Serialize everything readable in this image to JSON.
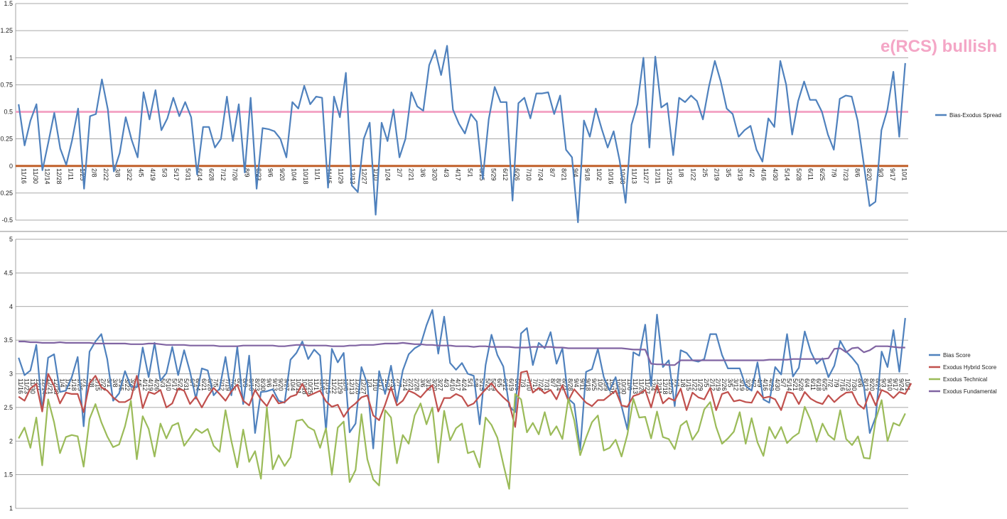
{
  "chart_data": [
    {
      "type": "line",
      "annotation": "e(RCS) bullish",
      "ylim": [
        -0.5,
        1.5
      ],
      "yticks": [
        "-0.5",
        "-0.25",
        "0",
        "0.25",
        "0.5",
        "0.75",
        "1",
        "1.25",
        "1.5"
      ],
      "grid": true,
      "legend_position": "right",
      "reference_lines": [
        {
          "value": 0.5,
          "color": "#f4a6c6"
        },
        {
          "value": 0,
          "color": "#c0602a"
        }
      ],
      "x_tick_labels": [
        "11/16",
        "11/30",
        "12/14",
        "12/28",
        "1/11",
        "1/25",
        "2/8",
        "2/22",
        "3/8",
        "3/22",
        "4/5",
        "4/19",
        "5/3",
        "5/17",
        "5/31",
        "6/14",
        "6/28",
        "7/12",
        "7/26",
        "8/9",
        "8/23",
        "9/6",
        "9/20",
        "10/4",
        "10/18",
        "11/1",
        "11/15",
        "11/29",
        "12/13",
        "12/27",
        "1/10",
        "1/24",
        "2/7",
        "2/21",
        "3/6",
        "3/20",
        "4/3",
        "4/17",
        "5/1",
        "5/15",
        "5/29",
        "6/12",
        "6/26",
        "7/10",
        "7/24",
        "8/7",
        "8/21",
        "9/4",
        "9/18",
        "10/2",
        "10/16",
        "10/30",
        "11/13",
        "11/27",
        "12/11",
        "12/25",
        "1/8",
        "1/22",
        "2/5",
        "2/19",
        "3/5",
        "3/19",
        "4/2",
        "4/16",
        "4/30",
        "5/14",
        "5/28",
        "6/11",
        "6/25",
        "7/9",
        "7/23",
        "8/6",
        "8/20",
        "9/3",
        "9/17",
        "10/1"
      ],
      "series": [
        {
          "name": "Bias-Exodus Spread",
          "color": "#4f81bd",
          "values": [
            0.57,
            0.19,
            0.42,
            0.57,
            -0.04,
            0.22,
            0.49,
            0.16,
            0.01,
            0.24,
            0.53,
            -0.21,
            0.46,
            0.48,
            0.8,
            0.52,
            -0.05,
            0.12,
            0.45,
            0.24,
            0.08,
            0.68,
            0.43,
            0.7,
            0.33,
            0.44,
            0.63,
            0.46,
            0.59,
            0.45,
            -0.08,
            0.36,
            0.36,
            0.17,
            0.25,
            0.64,
            0.23,
            0.57,
            -0.06,
            0.63,
            -0.21,
            0.35,
            0.34,
            0.32,
            0.25,
            0.08,
            0.59,
            0.53,
            0.74,
            0.57,
            0.64,
            0.63,
            -0.2,
            0.64,
            0.45,
            0.86,
            -0.18,
            -0.24,
            0.25,
            0.4,
            -0.45,
            0.4,
            0.23,
            0.52,
            0.08,
            0.25,
            0.68,
            0.55,
            0.51,
            0.93,
            1.07,
            0.84,
            1.11,
            0.52,
            0.39,
            0.3,
            0.48,
            0.41,
            -0.12,
            0.43,
            0.73,
            0.59,
            0.59,
            -0.32,
            0.58,
            0.63,
            0.44,
            0.67,
            0.67,
            0.68,
            0.48,
            0.65,
            0.15,
            0.08,
            -0.52,
            0.42,
            0.27,
            0.53,
            0.34,
            0.17,
            0.32,
            0.05,
            -0.34,
            0.38,
            0.57,
            1.0,
            0.17,
            1.01,
            0.54,
            0.58,
            0.1,
            0.63,
            0.59,
            0.65,
            0.6,
            0.43,
            0.73,
            0.97,
            0.78,
            0.53,
            0.48,
            0.27,
            0.33,
            0.37,
            0.15,
            0.04,
            0.44,
            0.36,
            0.97,
            0.75,
            0.29,
            0.6,
            0.78,
            0.61,
            0.61,
            0.5,
            0.29,
            0.15,
            0.62,
            0.65,
            0.64,
            0.42,
            0.03,
            -0.37,
            -0.33,
            0.33,
            0.52,
            0.87,
            0.27,
            0.95
          ]
        }
      ]
    },
    {
      "type": "line",
      "ylim": [
        1,
        5
      ],
      "yticks": [
        "1",
        "1.5",
        "2",
        "2.5",
        "3",
        "3.5",
        "4",
        "4.5",
        "5"
      ],
      "grid": true,
      "legend_position": "right",
      "x_tick_labels": [
        "11/16",
        "11/23",
        "11/30",
        "12/7",
        "12/14",
        "12/21",
        "12/28",
        "1/4",
        "1/11",
        "1/18",
        "1/25",
        "2/1",
        "2/8",
        "2/15",
        "2/22",
        "3/1",
        "3/8",
        "3/15",
        "3/22",
        "3/29",
        "4/5",
        "4/12",
        "4/19",
        "4/26",
        "5/3",
        "5/10",
        "5/17",
        "5/24",
        "5/31",
        "6/7",
        "6/14",
        "6/21",
        "6/28",
        "7/5",
        "7/12",
        "7/19",
        "7/26",
        "8/2",
        "8/9",
        "8/16",
        "8/23",
        "8/30",
        "9/6",
        "9/13",
        "9/20",
        "9/27",
        "10/4",
        "10/11",
        "10/18",
        "10/25",
        "11/1",
        "11/8",
        "11/15",
        "11/22",
        "11/29",
        "12/6",
        "12/13",
        "12/20",
        "12/27",
        "1/3",
        "1/10",
        "1/17",
        "1/24",
        "1/31",
        "2/7",
        "2/14",
        "2/21",
        "2/28",
        "3/6",
        "3/13",
        "3/20",
        "3/27",
        "4/3",
        "4/10",
        "4/17",
        "4/24",
        "5/1",
        "5/8",
        "5/15",
        "5/22",
        "5/29",
        "6/5",
        "6/12",
        "6/19",
        "6/26",
        "7/3",
        "7/10",
        "7/17",
        "7/24",
        "7/31",
        "8/7",
        "8/14",
        "8/21",
        "8/28",
        "9/4",
        "9/11",
        "9/18",
        "9/25",
        "10/2",
        "10/9",
        "10/16",
        "10/23",
        "10/30",
        "11/6",
        "11/13",
        "11/20",
        "11/27",
        "12/4",
        "12/11",
        "12/18",
        "12/25",
        "1/1",
        "1/8",
        "1/15",
        "1/22",
        "1/29",
        "2/5",
        "2/12",
        "2/19",
        "2/26",
        "3/5",
        "3/12",
        "3/19",
        "3/26",
        "4/2",
        "4/9",
        "4/16",
        "4/23",
        "4/30",
        "5/7",
        "5/14",
        "5/21",
        "5/28",
        "6/4",
        "6/11",
        "6/18",
        "6/25",
        "7/2",
        "7/9",
        "7/16",
        "7/23",
        "7/30",
        "8/6",
        "8/13",
        "8/20",
        "8/27",
        "9/3",
        "9/10",
        "9/17",
        "9/24",
        "10/1"
      ],
      "series": [
        {
          "name": "Bias Score",
          "color": "#4f81bd",
          "values": [
            3.24,
            2.98,
            3.05,
            3.43,
            2.45,
            3.24,
            3.29,
            2.73,
            2.75,
            2.95,
            3.25,
            2.22,
            3.33,
            3.48,
            3.59,
            3.22,
            2.6,
            2.71,
            3.04,
            2.81,
            2.8,
            3.39,
            2.95,
            3.46,
            2.9,
            3.01,
            3.4,
            2.98,
            3.35,
            3.03,
            2.63,
            3.08,
            3.05,
            2.68,
            2.78,
            3.25,
            2.68,
            3.4,
            2.55,
            3.27,
            2.12,
            2.73,
            2.74,
            2.77,
            2.6,
            2.57,
            3.21,
            3.31,
            3.48,
            3.22,
            3.36,
            3.27,
            2.15,
            3.37,
            3.17,
            3.31,
            2.13,
            2.26,
            3.1,
            2.85,
            1.89,
            3.04,
            2.7,
            3.12,
            2.58,
            3.05,
            3.29,
            3.38,
            3.43,
            3.72,
            3.95,
            3.3,
            3.85,
            3.16,
            3.06,
            3.16,
            3.0,
            2.97,
            2.25,
            3.13,
            3.58,
            3.28,
            3.11,
            2.52,
            2.43,
            3.6,
            3.68,
            3.13,
            3.46,
            3.38,
            3.62,
            3.15,
            3.38,
            2.63,
            2.55,
            1.87,
            3.03,
            3.07,
            3.37,
            2.95,
            2.75,
            2.95,
            2.52,
            2.17,
            3.32,
            3.27,
            3.73,
            2.82,
            3.88,
            3.1,
            3.2,
            2.52,
            3.35,
            3.31,
            3.2,
            3.18,
            3.22,
            3.59,
            3.59,
            3.28,
            3.08,
            3.08,
            3.08,
            2.82,
            2.75,
            3.17,
            2.62,
            2.57,
            3.1,
            2.99,
            3.59,
            2.96,
            3.09,
            3.63,
            3.33,
            3.15,
            3.23,
            2.95,
            3.12,
            3.49,
            3.33,
            3.24,
            3.13,
            2.82,
            2.12,
            2.36,
            3.33,
            3.1,
            3.65,
            3.03,
            3.83
          ]
        },
        {
          "name": "Exodus Hybrid Score",
          "color": "#c0504d",
          "values": [
            2.66,
            2.6,
            2.78,
            2.85,
            2.44,
            3.0,
            2.82,
            2.56,
            2.72,
            2.7,
            2.7,
            2.43,
            2.86,
            2.97,
            2.8,
            2.75,
            2.65,
            2.58,
            2.58,
            2.63,
            2.97,
            2.49,
            2.73,
            2.7,
            2.76,
            2.5,
            2.56,
            2.78,
            2.75,
            2.55,
            2.66,
            2.5,
            2.66,
            2.79,
            2.7,
            2.6,
            2.74,
            2.84,
            2.6,
            2.53,
            2.76,
            2.62,
            2.52,
            2.69,
            2.56,
            2.58,
            2.66,
            2.69,
            2.85,
            2.67,
            2.71,
            2.75,
            2.59,
            2.51,
            2.54,
            2.36,
            2.49,
            2.56,
            2.65,
            2.68,
            2.38,
            2.31,
            2.54,
            2.8,
            2.53,
            2.6,
            2.75,
            2.71,
            2.65,
            2.75,
            2.83,
            2.44,
            2.64,
            2.64,
            2.7,
            2.66,
            2.52,
            2.56,
            2.67,
            2.77,
            2.86,
            2.74,
            2.65,
            2.57,
            2.21,
            3.02,
            3.04,
            2.72,
            2.79,
            2.71,
            2.76,
            2.62,
            2.83,
            2.6,
            2.77,
            2.67,
            2.57,
            2.52,
            2.61,
            2.61,
            2.68,
            2.75,
            2.53,
            2.51,
            2.67,
            2.7,
            2.76,
            2.5,
            2.83,
            2.56,
            2.64,
            2.6,
            2.78,
            2.46,
            2.72,
            2.65,
            2.62,
            2.79,
            2.46,
            2.7,
            2.73,
            2.59,
            2.61,
            2.58,
            2.57,
            2.74,
            2.64,
            2.66,
            2.62,
            2.46,
            2.73,
            2.71,
            2.55,
            2.73,
            2.63,
            2.58,
            2.55,
            2.68,
            2.58,
            2.66,
            2.72,
            2.73,
            2.55,
            2.48,
            2.73,
            2.53,
            2.76,
            2.72,
            2.64,
            2.73,
            2.7,
            2.86
          ]
        },
        {
          "name": "Exodus Technical",
          "color": "#9bbb59",
          "values": [
            2.04,
            2.2,
            1.9,
            2.35,
            1.64,
            2.62,
            2.28,
            1.82,
            2.06,
            2.09,
            2.07,
            1.62,
            2.33,
            2.55,
            2.28,
            2.07,
            1.91,
            1.95,
            2.22,
            2.6,
            1.73,
            2.37,
            2.18,
            1.77,
            2.26,
            2.04,
            2.23,
            2.27,
            1.93,
            2.05,
            2.18,
            2.12,
            2.18,
            1.93,
            1.84,
            2.46,
            2.0,
            1.61,
            2.17,
            1.69,
            1.85,
            1.44,
            2.5,
            1.58,
            1.79,
            1.63,
            1.76,
            2.3,
            2.32,
            2.21,
            2.16,
            1.9,
            2.19,
            1.5,
            2.2,
            2.29,
            1.39,
            1.57,
            2.4,
            1.73,
            1.43,
            1.34,
            2.46,
            2.35,
            1.67,
            2.09,
            1.96,
            2.38,
            2.56,
            2.25,
            2.5,
            1.68,
            2.45,
            2.01,
            2.19,
            2.26,
            1.82,
            1.85,
            1.61,
            2.35,
            2.24,
            2.05,
            1.66,
            1.29,
            2.7,
            2.62,
            2.13,
            2.27,
            2.1,
            2.43,
            2.09,
            2.22,
            2.03,
            2.63,
            2.31,
            1.79,
            2.05,
            2.28,
            2.38,
            1.86,
            1.9,
            2.02,
            1.77,
            2.1,
            2.63,
            2.35,
            2.36,
            2.04,
            2.44,
            2.06,
            2.03,
            1.88,
            2.23,
            2.3,
            2.02,
            2.15,
            2.47,
            2.58,
            2.21,
            1.96,
            2.04,
            2.14,
            2.43,
            1.96,
            2.34,
            1.98,
            1.78,
            2.21,
            2.04,
            2.21,
            1.97,
            2.06,
            2.12,
            2.51,
            2.31,
            1.99,
            2.26,
            2.09,
            2.02,
            2.46,
            2.03,
            1.94,
            2.07,
            1.75,
            1.74,
            2.32,
            2.61,
            2.0,
            2.27,
            2.23,
            2.41
          ]
        },
        {
          "name": "Exodus Fundamental",
          "color": "#8064a2",
          "values": [
            3.48,
            3.48,
            3.47,
            3.47,
            3.46,
            3.46,
            3.46,
            3.47,
            3.46,
            3.46,
            3.46,
            3.46,
            3.46,
            3.45,
            3.45,
            3.45,
            3.45,
            3.45,
            3.45,
            3.44,
            3.44,
            3.44,
            3.45,
            3.45,
            3.44,
            3.43,
            3.43,
            3.43,
            3.43,
            3.42,
            3.42,
            3.42,
            3.42,
            3.42,
            3.41,
            3.41,
            3.41,
            3.41,
            3.42,
            3.42,
            3.42,
            3.42,
            3.42,
            3.42,
            3.41,
            3.41,
            3.42,
            3.43,
            3.43,
            3.42,
            3.42,
            3.42,
            3.42,
            3.41,
            3.41,
            3.41,
            3.42,
            3.42,
            3.43,
            3.43,
            3.43,
            3.44,
            3.45,
            3.45,
            3.45,
            3.46,
            3.45,
            3.44,
            3.44,
            3.43,
            3.43,
            3.42,
            3.42,
            3.42,
            3.41,
            3.41,
            3.41,
            3.4,
            3.41,
            3.41,
            3.4,
            3.4,
            3.4,
            3.4,
            3.39,
            3.39,
            3.39,
            3.4,
            3.4,
            3.4,
            3.4,
            3.39,
            3.39,
            3.38,
            3.38,
            3.38,
            3.38,
            3.38,
            3.38,
            3.38,
            3.38,
            3.38,
            3.38,
            3.37,
            3.36,
            3.36,
            3.36,
            3.15,
            3.14,
            3.14,
            3.13,
            3.13,
            3.2,
            3.2,
            3.2,
            3.2,
            3.2,
            3.2,
            3.2,
            3.2,
            3.2,
            3.2,
            3.2,
            3.2,
            3.2,
            3.2,
            3.2,
            3.21,
            3.21,
            3.21,
            3.21,
            3.22,
            3.22,
            3.22,
            3.22,
            3.22,
            3.22,
            3.23,
            3.37,
            3.38,
            3.32,
            3.38,
            3.39,
            3.32,
            3.35,
            3.41,
            3.41,
            3.41,
            3.4,
            3.39,
            3.39
          ]
        }
      ]
    }
  ]
}
